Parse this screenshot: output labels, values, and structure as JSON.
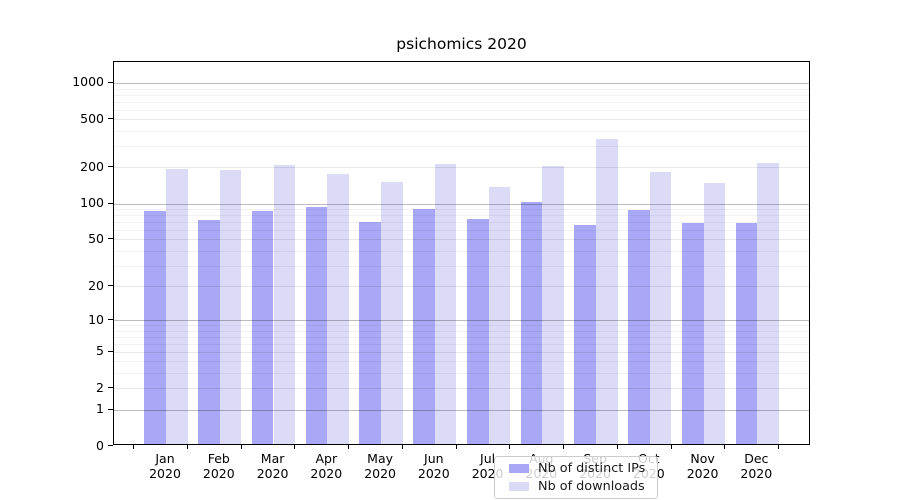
{
  "title": "psichomics 2020",
  "chart_data": {
    "type": "bar",
    "title": "psichomics 2020",
    "scale": "log1p",
    "categories": [
      "Jan",
      "Feb",
      "Mar",
      "Apr",
      "May",
      "Jun",
      "Jul",
      "Aug",
      "Sep",
      "Oct",
      "Nov",
      "Dec"
    ],
    "year_label": "2020",
    "series": [
      {
        "name": "Nb of distinct IPs",
        "color": "#a8a8f6",
        "values": [
          83,
          70,
          83,
          90,
          67,
          87,
          71,
          100,
          63,
          85,
          66,
          66
        ]
      },
      {
        "name": "Nb of downloads",
        "color": "#dbdbf8",
        "values": [
          187,
          182,
          200,
          170,
          146,
          207,
          131,
          196,
          328,
          177,
          144,
          210
        ]
      }
    ],
    "yticks": [
      0,
      1,
      2,
      5,
      10,
      20,
      50,
      100,
      200,
      500,
      1000
    ],
    "decade_gridlines": [
      1,
      10,
      100,
      1000
    ],
    "mid_gridlines": [
      2,
      5,
      20,
      50,
      200,
      500
    ],
    "minor_gridlines": [
      3,
      4,
      6,
      7,
      8,
      9,
      30,
      40,
      60,
      70,
      80,
      90,
      300,
      400,
      600,
      700,
      800,
      900
    ],
    "ylim": [
      0,
      1490
    ],
    "grid": true,
    "legend_position": "lower-center"
  }
}
